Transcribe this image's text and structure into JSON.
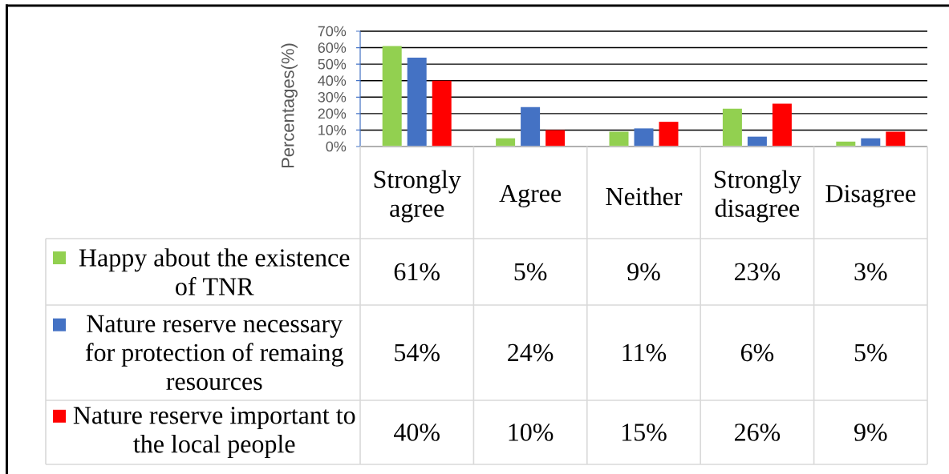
{
  "chart_data": {
    "type": "bar",
    "ylabel": "Percentages(%)",
    "categories": [
      "Strongly agree",
      "Agree",
      "Neither",
      "Strongly disagree",
      "Disagree"
    ],
    "series": [
      {
        "name": "Happy about the existence of TNR",
        "color": "#92d050",
        "values": [
          61,
          5,
          9,
          23,
          3
        ],
        "value_labels": [
          "61%",
          "5%",
          "9%",
          "23%",
          "3%"
        ]
      },
      {
        "name": "Nature reserve necessary for protection of remaing resources",
        "color": "#4472c4",
        "values": [
          54,
          24,
          11,
          6,
          5
        ],
        "value_labels": [
          "54%",
          "24%",
          "11%",
          "6%",
          "5%"
        ]
      },
      {
        "name": "Nature reserve important to the local people",
        "color": "#ff0000",
        "values": [
          40,
          10,
          15,
          26,
          9
        ],
        "value_labels": [
          "40%",
          "10%",
          "15%",
          "26%",
          "9%"
        ]
      }
    ],
    "ylim": [
      0,
      70
    ],
    "yticks": [
      {
        "value": 0,
        "label": "0%"
      },
      {
        "value": 10,
        "label": "10%"
      },
      {
        "value": 20,
        "label": "20%"
      },
      {
        "value": 30,
        "label": "30%"
      },
      {
        "value": 40,
        "label": "40%"
      },
      {
        "value": 50,
        "label": "50%"
      },
      {
        "value": 60,
        "label": "60%"
      },
      {
        "value": 70,
        "label": "70%"
      }
    ],
    "grid": "y",
    "legend": "bottom"
  }
}
